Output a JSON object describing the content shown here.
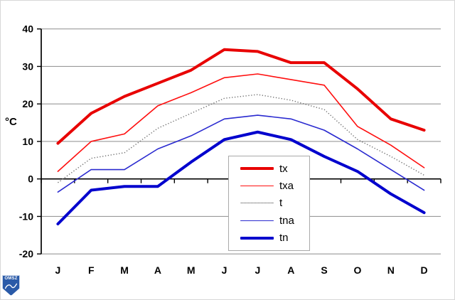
{
  "chart_data": {
    "type": "line",
    "title": "",
    "ylabel": "°C",
    "xlabel": "",
    "grid": true,
    "legend_position": "inside-lower-middle",
    "categories": [
      "J",
      "F",
      "M",
      "A",
      "M",
      "J",
      "J",
      "A",
      "S",
      "O",
      "N",
      "D"
    ],
    "ylim": [
      -20,
      40
    ],
    "yticks": [
      40,
      30,
      20,
      10,
      0,
      -10,
      -20
    ],
    "series": [
      {
        "name": "tx",
        "color": "#e80000",
        "width": 4,
        "style": "solid",
        "values": [
          9.5,
          17.5,
          22,
          25.5,
          29,
          34.5,
          34,
          31,
          31,
          24,
          16,
          13
        ]
      },
      {
        "name": "txa",
        "color": "#ff0f0f",
        "width": 1.6,
        "style": "solid",
        "values": [
          2,
          10,
          12,
          19.5,
          23,
          27,
          28,
          26.5,
          25,
          14,
          9,
          3
        ]
      },
      {
        "name": "t",
        "color": "#6e6e6e",
        "width": 1.4,
        "style": "dotted",
        "values": [
          -1,
          5.5,
          7,
          13.5,
          17.5,
          21.5,
          22.5,
          21,
          18.5,
          10.5,
          6,
          1
        ]
      },
      {
        "name": "tna",
        "color": "#2a2ad0",
        "width": 1.6,
        "style": "solid",
        "values": [
          -3.5,
          2.5,
          2.5,
          8,
          11.5,
          16,
          17,
          16,
          13,
          8,
          2.5,
          -3
        ]
      },
      {
        "name": "tn",
        "color": "#0000cd",
        "width": 4,
        "style": "solid",
        "values": [
          -12,
          -3,
          -2,
          -2,
          4.5,
          10.5,
          12.5,
          10.5,
          6,
          2,
          -4,
          -9
        ]
      }
    ]
  },
  "axis": {
    "y_tick_labels": [
      "40",
      "30",
      "20",
      "10",
      "0",
      "-10",
      "-20"
    ],
    "unit_label": "°C",
    "gridline_color": "#999999"
  },
  "legend": {
    "items": [
      "tx",
      "txa",
      "t",
      "tna",
      "tn"
    ]
  },
  "logo": {
    "text": "OMSZ"
  }
}
